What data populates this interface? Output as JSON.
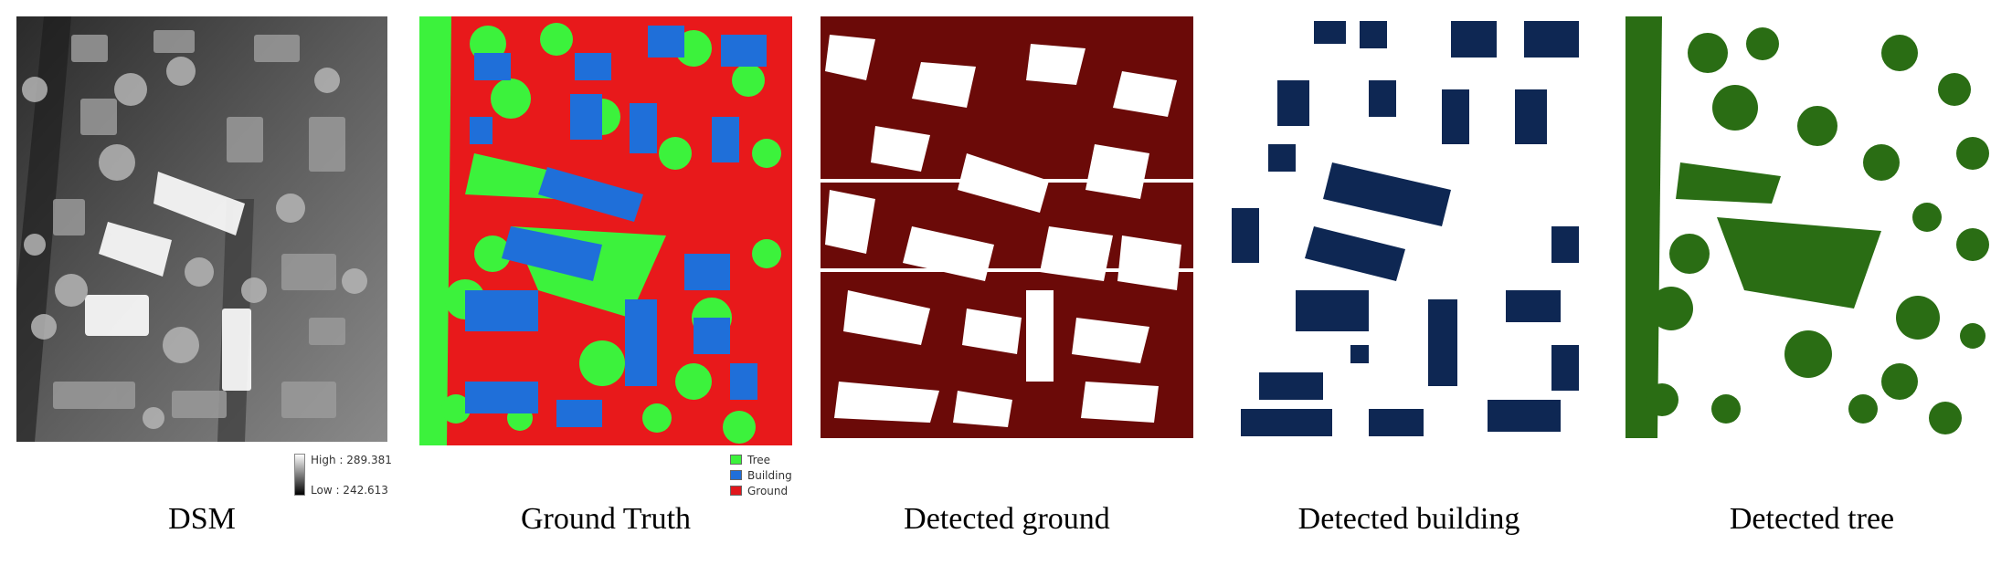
{
  "panels": [
    {
      "caption": "DSM"
    },
    {
      "caption": "Ground Truth"
    },
    {
      "caption": "Detected ground"
    },
    {
      "caption": "Detected building"
    },
    {
      "caption": "Detected tree"
    }
  ],
  "dsm_legend": {
    "high": "High : 289.381",
    "low": "Low : 242.613"
  },
  "class_legend": [
    {
      "label": "Tree",
      "color": "#3cf23c"
    },
    {
      "label": "Building",
      "color": "#1f6fd9"
    },
    {
      "label": "Ground",
      "color": "#e0161c"
    }
  ],
  "colors": {
    "detected_ground": "#6b0a08",
    "detected_building": "#0e2753",
    "detected_tree": "#2a6d14",
    "ground_truth_ground": "#e8191b",
    "ground_truth_building": "#1f6fd9",
    "ground_truth_tree": "#3cf23c"
  }
}
